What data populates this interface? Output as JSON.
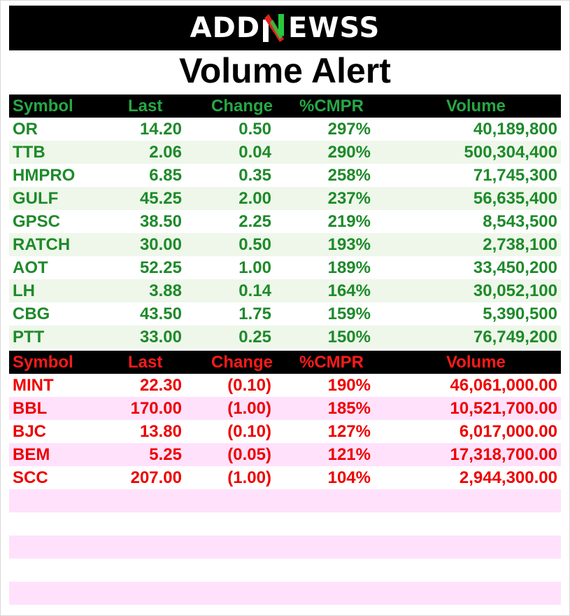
{
  "brand": {
    "logo_left": "ADD",
    "logo_right": "EWSS"
  },
  "title": "Volume Alert",
  "headers": [
    "Symbol",
    "Last",
    "Change",
    "%CMPR",
    "Volume"
  ],
  "gainers": [
    [
      "OR",
      "14.20",
      "0.50",
      "297%",
      "40,189,800"
    ],
    [
      "TTB",
      "2.06",
      "0.04",
      "290%",
      "500,304,400"
    ],
    [
      "HMPRO",
      "6.85",
      "0.35",
      "258%",
      "71,745,300"
    ],
    [
      "GULF",
      "45.25",
      "2.00",
      "237%",
      "56,635,400"
    ],
    [
      "GPSC",
      "38.50",
      "2.25",
      "219%",
      "8,543,500"
    ],
    [
      "RATCH",
      "30.00",
      "0.50",
      "193%",
      "2,738,100"
    ],
    [
      "AOT",
      "52.25",
      "1.00",
      "189%",
      "33,450,200"
    ],
    [
      "LH",
      "3.88",
      "0.14",
      "164%",
      "30,052,100"
    ],
    [
      "CBG",
      "43.50",
      "1.75",
      "159%",
      "5,390,500"
    ],
    [
      "PTT",
      "33.00",
      "0.25",
      "150%",
      "76,749,200"
    ]
  ],
  "losers": [
    [
      "MINT",
      "22.30",
      "(0.10)",
      "190%",
      "46,061,000.00"
    ],
    [
      "BBL",
      "170.00",
      "(1.00)",
      "185%",
      "10,521,700.00"
    ],
    [
      "BJC",
      "13.80",
      "(0.10)",
      "127%",
      "6,017,000.00"
    ],
    [
      "BEM",
      "5.25",
      "(0.05)",
      "121%",
      "17,318,700.00"
    ],
    [
      "SCC",
      "207.00",
      "(1.00)",
      "104%",
      "2,944,300.00"
    ],
    [
      "",
      "",
      "",
      "",
      ""
    ],
    [
      "",
      "",
      "",
      "",
      ""
    ],
    [
      "",
      "",
      "",
      "",
      ""
    ],
    [
      "",
      "",
      "",
      "",
      ""
    ],
    [
      "",
      "",
      "",
      "",
      ""
    ]
  ],
  "colors": {
    "gain_text": "#1e8a2a",
    "gain_header": "#27a844",
    "loss_text": "#ee0000",
    "gain_stripe": "#eef7ea",
    "loss_stripe": "#ffe1fc",
    "logo_n_green": "#27c93f",
    "logo_n_red": "#e02020"
  }
}
